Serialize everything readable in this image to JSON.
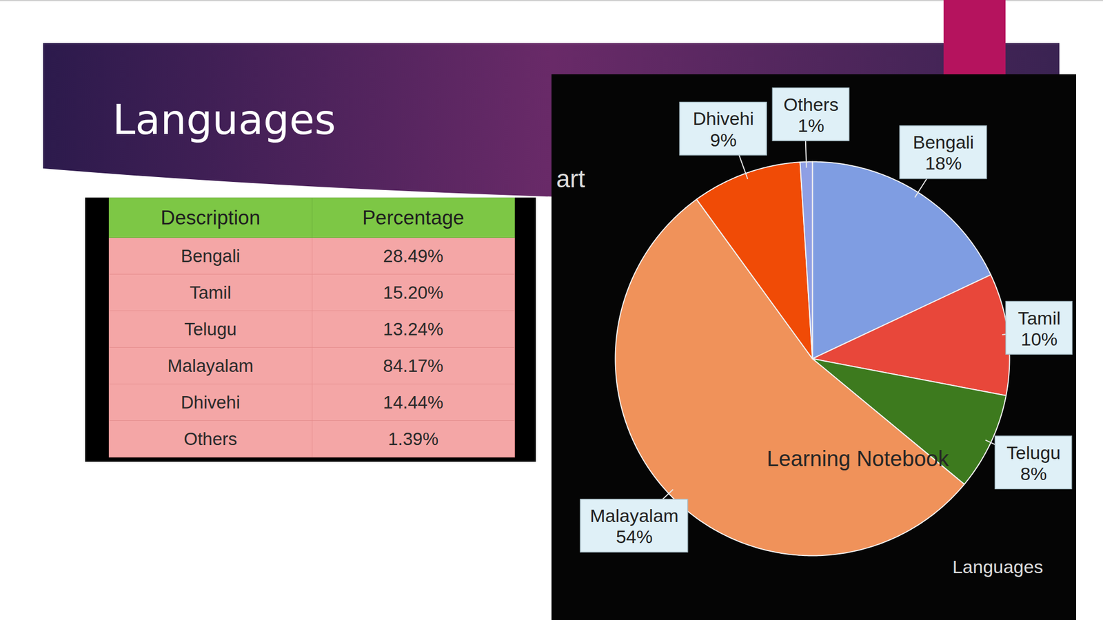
{
  "title": "Languages",
  "table": {
    "header": [
      "Description",
      "Percentage"
    ],
    "rows": [
      [
        "Bengali",
        "28.49%"
      ],
      [
        "Tamil",
        "15.20%"
      ],
      [
        "Telugu",
        "13.24%"
      ],
      [
        "Malayalam",
        "84.17%"
      ],
      [
        "Dhivehi",
        "14.44%"
      ],
      [
        "Others",
        "1.39%"
      ]
    ]
  },
  "chart_data": {
    "type": "pie",
    "title": "Languages",
    "annotations": [
      "art",
      "Learning Notebook"
    ],
    "categories": [
      "Bengali",
      "Tamil",
      "Telugu",
      "Malayalam",
      "Dhivehi",
      "Others"
    ],
    "values": [
      18,
      10,
      8,
      54,
      9,
      1
    ],
    "value_labels": [
      "18%",
      "10%",
      "8%",
      "54%",
      "9%",
      "1%"
    ],
    "colors": [
      "#7f9de2",
      "#e8473a",
      "#3d7a1e",
      "#f0925a",
      "#f04b06",
      "#8f9fe4"
    ],
    "data_labels": true
  }
}
